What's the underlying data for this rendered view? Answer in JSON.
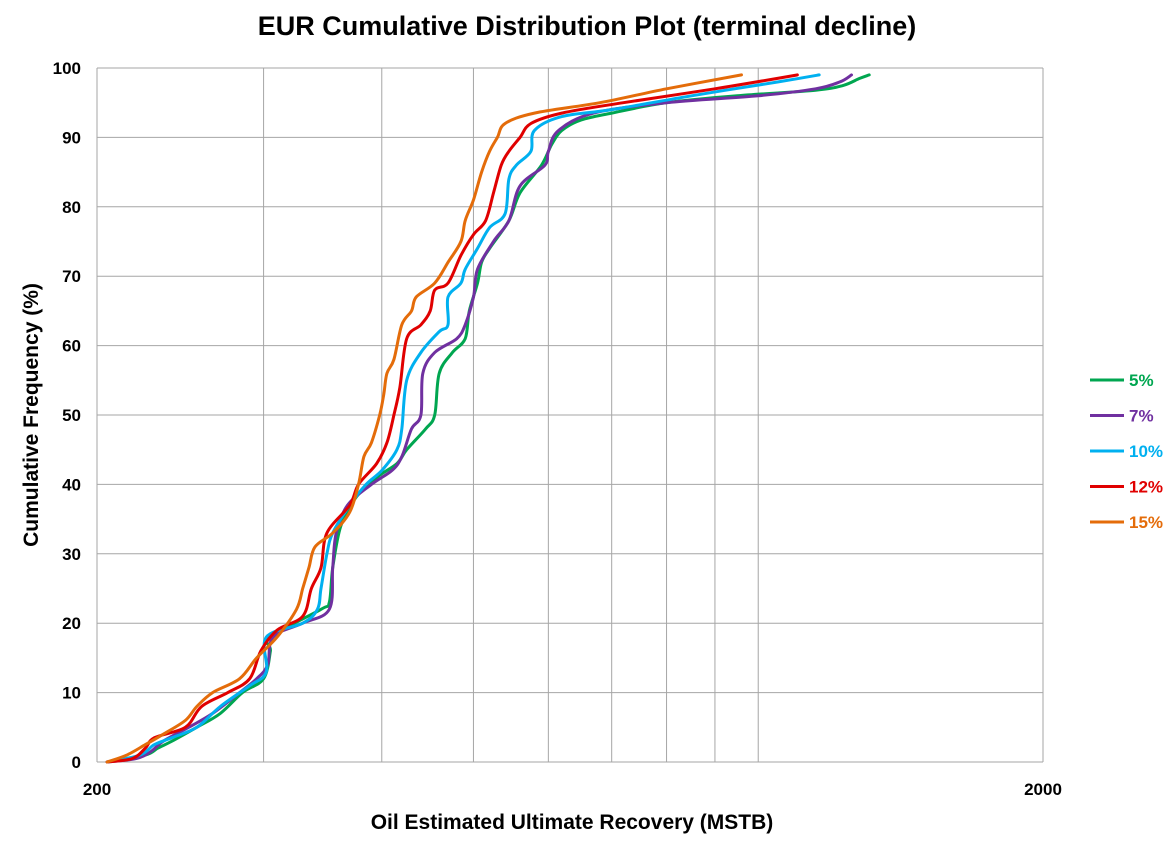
{
  "chart_data": {
    "type": "line",
    "title": "EUR Cumulative Distribution Plot (terminal decline)",
    "xlabel": "Oil Estimated Ultimate Recovery (MSTB)",
    "ylabel": "Cumulative Frequency (%)",
    "xscale": "log",
    "xlim": [
      200,
      2000
    ],
    "ylim": [
      0,
      100
    ],
    "x_tick_labels": [
      "200",
      "2000"
    ],
    "y_ticks": [
      0,
      10,
      20,
      30,
      40,
      50,
      60,
      70,
      80,
      90,
      100
    ],
    "x_gridlines": [
      200,
      300,
      400,
      500,
      600,
      700,
      800,
      900,
      1000,
      2000
    ],
    "grid": true,
    "legend_position": "right",
    "series": [
      {
        "name": "5%",
        "color": "#00a650",
        "points": [
          [
            205,
            0
          ],
          [
            225,
            1
          ],
          [
            232,
            2
          ],
          [
            240,
            3
          ],
          [
            255,
            5
          ],
          [
            270,
            7
          ],
          [
            285,
            10
          ],
          [
            300,
            12
          ],
          [
            305,
            16
          ],
          [
            305,
            18
          ],
          [
            345,
            22
          ],
          [
            352,
            23
          ],
          [
            355,
            28
          ],
          [
            362,
            34
          ],
          [
            375,
            38
          ],
          [
            395,
            41
          ],
          [
            415,
            43
          ],
          [
            425,
            45
          ],
          [
            445,
            48
          ],
          [
            455,
            50
          ],
          [
            460,
            56
          ],
          [
            475,
            59
          ],
          [
            490,
            61
          ],
          [
            495,
            65
          ],
          [
            505,
            69
          ],
          [
            510,
            72
          ],
          [
            520,
            74
          ],
          [
            545,
            78
          ],
          [
            560,
            82
          ],
          [
            590,
            86
          ],
          [
            605,
            89
          ],
          [
            620,
            91
          ],
          [
            650,
            92.5
          ],
          [
            700,
            93.5
          ],
          [
            800,
            95
          ],
          [
            950,
            96
          ],
          [
            1150,
            96.8
          ],
          [
            1230,
            97.5
          ],
          [
            1280,
            98.5
          ],
          [
            1310,
            99
          ]
        ]
      },
      {
        "name": "7%",
        "color": "#7030a0",
        "points": [
          [
            205,
            0
          ],
          [
            220,
            0.5
          ],
          [
            228,
            1.5
          ],
          [
            235,
            3
          ],
          [
            250,
            5
          ],
          [
            265,
            7
          ],
          [
            283,
            10
          ],
          [
            295,
            12
          ],
          [
            303,
            14
          ],
          [
            307,
            18
          ],
          [
            330,
            20
          ],
          [
            352,
            22
          ],
          [
            355,
            28
          ],
          [
            358,
            33
          ],
          [
            368,
            37
          ],
          [
            390,
            40
          ],
          [
            410,
            42
          ],
          [
            420,
            44
          ],
          [
            430,
            48
          ],
          [
            440,
            50
          ],
          [
            442,
            56
          ],
          [
            455,
            59
          ],
          [
            480,
            61
          ],
          [
            490,
            63
          ],
          [
            500,
            67
          ],
          [
            505,
            71
          ],
          [
            525,
            75
          ],
          [
            545,
            78
          ],
          [
            560,
            83
          ],
          [
            595,
            86
          ],
          [
            600,
            88
          ],
          [
            615,
            91
          ],
          [
            670,
            93.5
          ],
          [
            800,
            95
          ],
          [
            1000,
            96
          ],
          [
            1150,
            97
          ],
          [
            1220,
            98
          ],
          [
            1255,
            99
          ]
        ]
      },
      {
        "name": "10%",
        "color": "#00b0f0",
        "points": [
          [
            205,
            0
          ],
          [
            222,
            1
          ],
          [
            230,
            2.5
          ],
          [
            240,
            3.5
          ],
          [
            255,
            5
          ],
          [
            270,
            8
          ],
          [
            290,
            11
          ],
          [
            302,
            13
          ],
          [
            302,
            18
          ],
          [
            330,
            20
          ],
          [
            342,
            22
          ],
          [
            345,
            25
          ],
          [
            350,
            30
          ],
          [
            355,
            33
          ],
          [
            370,
            37
          ],
          [
            385,
            40
          ],
          [
            400,
            42
          ],
          [
            415,
            45
          ],
          [
            420,
            48
          ],
          [
            425,
            55
          ],
          [
            440,
            59
          ],
          [
            460,
            62
          ],
          [
            470,
            63
          ],
          [
            470,
            67
          ],
          [
            485,
            69
          ],
          [
            490,
            71
          ],
          [
            505,
            74
          ],
          [
            520,
            77
          ],
          [
            540,
            79
          ],
          [
            545,
            84
          ],
          [
            555,
            86
          ],
          [
            575,
            88
          ],
          [
            580,
            91
          ],
          [
            620,
            93
          ],
          [
            700,
            94
          ],
          [
            850,
            96
          ],
          [
            1050,
            98
          ],
          [
            1160,
            99
          ]
        ]
      },
      {
        "name": "12%",
        "color": "#e00000",
        "points": [
          [
            205,
            0
          ],
          [
            218,
            0.5
          ],
          [
            225,
            2
          ],
          [
            230,
            3.5
          ],
          [
            248,
            5
          ],
          [
            258,
            8
          ],
          [
            275,
            10
          ],
          [
            290,
            12
          ],
          [
            298,
            16
          ],
          [
            310,
            19
          ],
          [
            330,
            21
          ],
          [
            337,
            25
          ],
          [
            345,
            28
          ],
          [
            350,
            33
          ],
          [
            370,
            37
          ],
          [
            378,
            40
          ],
          [
            395,
            43
          ],
          [
            405,
            46
          ],
          [
            412,
            50
          ],
          [
            418,
            54
          ],
          [
            425,
            61
          ],
          [
            440,
            63
          ],
          [
            450,
            65
          ],
          [
            455,
            68
          ],
          [
            470,
            69
          ],
          [
            485,
            73
          ],
          [
            500,
            76
          ],
          [
            515,
            78
          ],
          [
            525,
            82
          ],
          [
            535,
            86
          ],
          [
            545,
            88
          ],
          [
            560,
            90
          ],
          [
            575,
            92
          ],
          [
            620,
            93.5
          ],
          [
            720,
            95
          ],
          [
            900,
            97
          ],
          [
            1100,
            99
          ]
        ]
      },
      {
        "name": "15%",
        "color": "#e46c0a",
        "points": [
          [
            205,
            0
          ],
          [
            215,
            1
          ],
          [
            225,
            2.5
          ],
          [
            235,
            4
          ],
          [
            248,
            6
          ],
          [
            255,
            8
          ],
          [
            265,
            10
          ],
          [
            283,
            12
          ],
          [
            295,
            15
          ],
          [
            310,
            18
          ],
          [
            325,
            22
          ],
          [
            330,
            25
          ],
          [
            335,
            28
          ],
          [
            340,
            31
          ],
          [
            355,
            33
          ],
          [
            370,
            36
          ],
          [
            378,
            40
          ],
          [
            383,
            44
          ],
          [
            390,
            46
          ],
          [
            398,
            50
          ],
          [
            402,
            53
          ],
          [
            405,
            56
          ],
          [
            412,
            58
          ],
          [
            420,
            63
          ],
          [
            430,
            65
          ],
          [
            435,
            67
          ],
          [
            455,
            69
          ],
          [
            470,
            72
          ],
          [
            485,
            75
          ],
          [
            490,
            78
          ],
          [
            500,
            81
          ],
          [
            510,
            85
          ],
          [
            520,
            88
          ],
          [
            530,
            90
          ],
          [
            540,
            92
          ],
          [
            580,
            93.5
          ],
          [
            680,
            95
          ],
          [
            800,
            97
          ],
          [
            960,
            99
          ]
        ]
      }
    ]
  }
}
